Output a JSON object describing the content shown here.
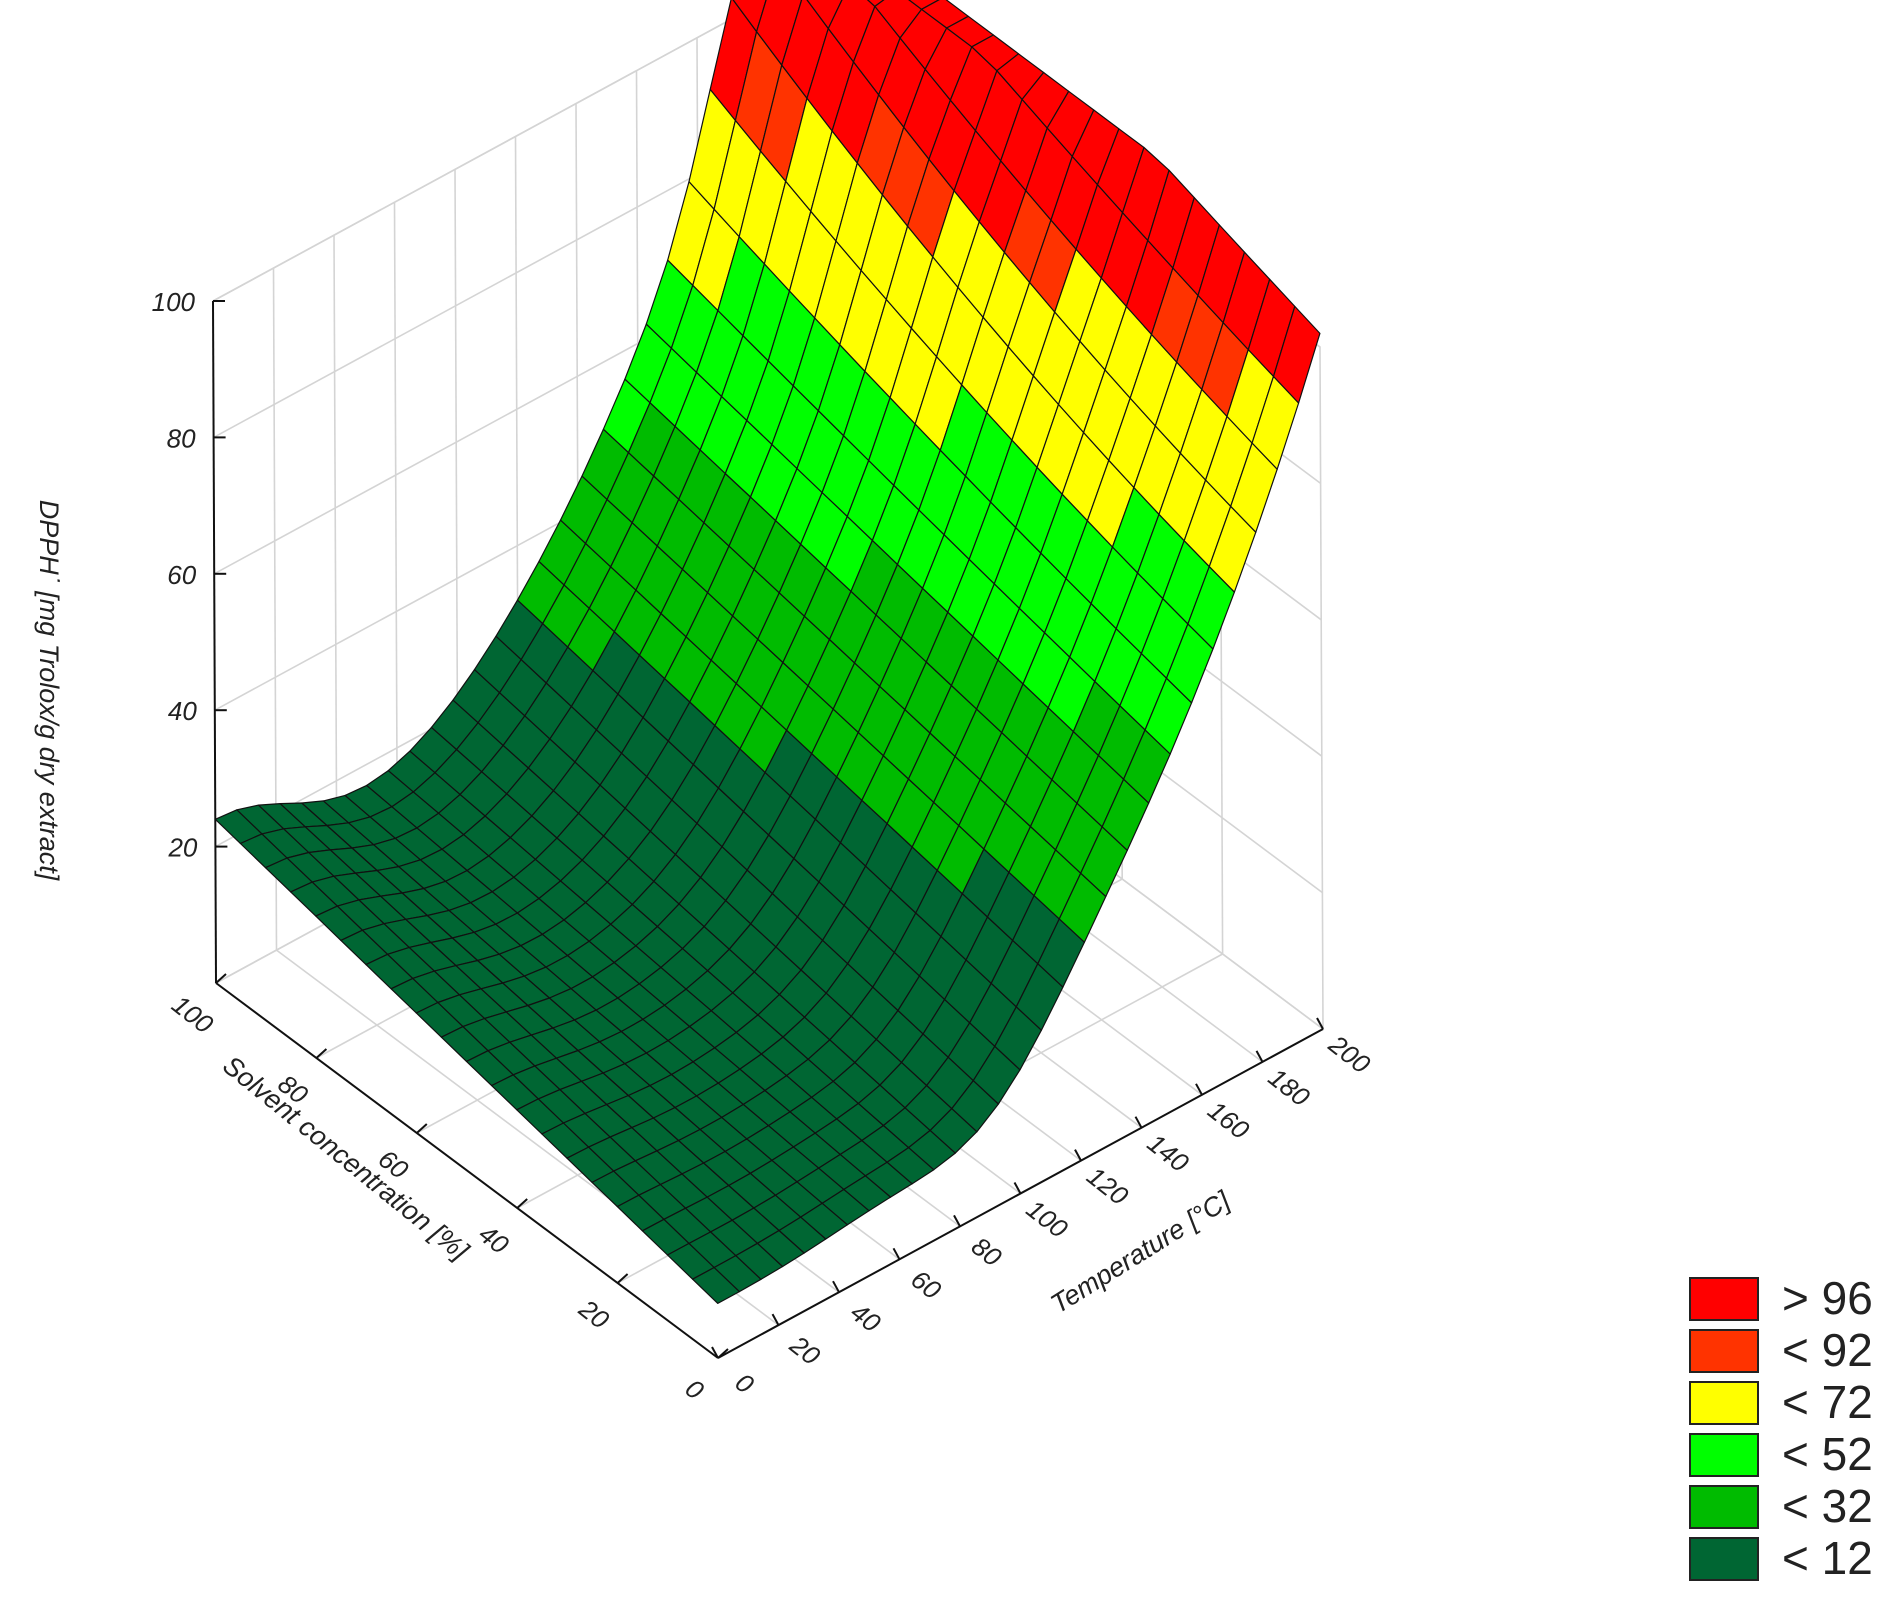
{
  "chart_data": {
    "type": "surface3d",
    "title": "",
    "zlabel": "DPPH˙ [mg Trolox/g dry extract]",
    "xlabel": "Solvent concentration [%]",
    "ylabel": "Temperature [°C]",
    "x_range": [
      0,
      100
    ],
    "y_range": [
      0,
      200
    ],
    "z_range": [
      0,
      100
    ],
    "x_ticks": [
      "0",
      "20",
      "40",
      "60",
      "80",
      "100"
    ],
    "y_ticks": [
      "0",
      "20",
      "40",
      "60",
      "80",
      "100",
      "120",
      "140",
      "160",
      "180",
      "200"
    ],
    "z_ticks": [
      "20",
      "40",
      "60",
      "80",
      "100"
    ],
    "grid": true,
    "legend_position": "bottom-right",
    "legend": [
      {
        "label": "> 96",
        "color": "#ff0000"
      },
      {
        "label": "< 92",
        "color": "#ff3300"
      },
      {
        "label": "< 72",
        "color": "#ffff00"
      },
      {
        "label": "< 52",
        "color": "#00ff00"
      },
      {
        "label": "< 32",
        "color": "#00bb00"
      },
      {
        "label": "< 12",
        "color": "#006633"
      }
    ],
    "sample_points": [
      {
        "solvent": 100,
        "temperature": 0,
        "dpph": 28
      },
      {
        "solvent": 100,
        "temperature": 60,
        "dpph": 22
      },
      {
        "solvent": 50,
        "temperature": 40,
        "dpph": 12
      },
      {
        "solvent": 10,
        "temperature": 100,
        "dpph": 5
      },
      {
        "solvent": 100,
        "temperature": 200,
        "dpph": 98
      },
      {
        "solvent": 0,
        "temperature": 200,
        "dpph": 93
      },
      {
        "solvent": 100,
        "temperature": 130,
        "dpph": 74
      }
    ]
  }
}
